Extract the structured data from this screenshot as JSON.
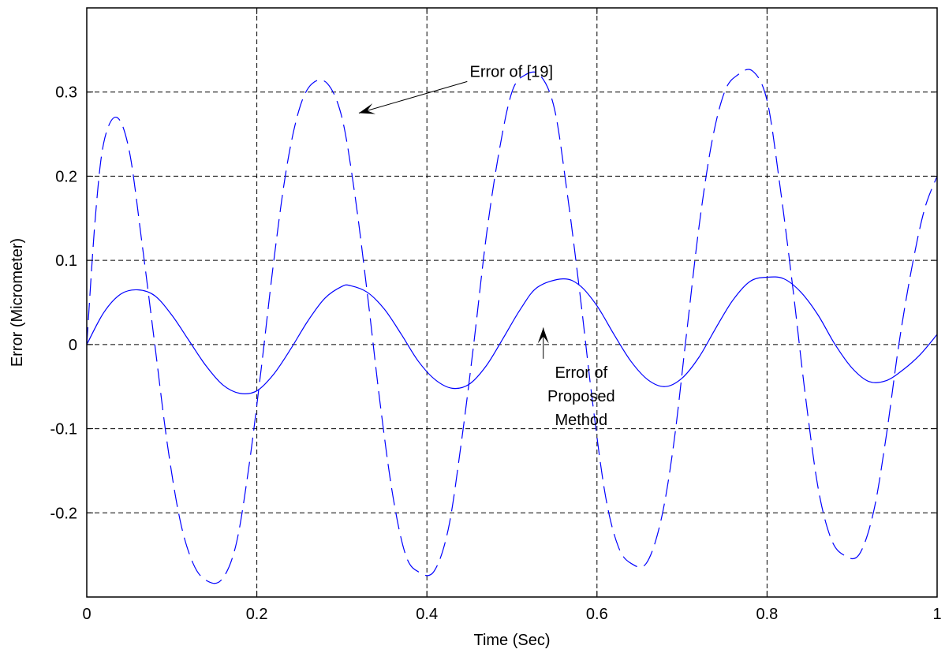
{
  "chart_data": {
    "type": "line",
    "title": "",
    "xlabel": "Time (Sec)",
    "ylabel": "Error (Micrometer)",
    "xlim": [
      0,
      1
    ],
    "ylim": [
      -0.3,
      0.4
    ],
    "xticks": [
      0,
      0.2,
      0.4,
      0.6,
      0.8,
      1
    ],
    "xtick_labels": [
      "0",
      "0.2",
      "0.4",
      "0.6",
      "0.8",
      "1"
    ],
    "yticks": [
      -0.2,
      -0.1,
      0,
      0.1,
      0.2,
      0.3
    ],
    "ytick_labels": [
      "-0.2",
      "-0.1",
      "0",
      "0.1",
      "0.2",
      "0.3"
    ],
    "grid": true,
    "line_color": "#0000ff",
    "series": [
      {
        "id": "ref19",
        "style": "dashed",
        "x": [
          0,
          0.01,
          0.02,
          0.035,
          0.05,
          0.065,
          0.08,
          0.095,
          0.11,
          0.125,
          0.14,
          0.158,
          0.175,
          0.19,
          0.205,
          0.22,
          0.235,
          0.25,
          0.265,
          0.283,
          0.3,
          0.315,
          0.33,
          0.345,
          0.36,
          0.375,
          0.39,
          0.408,
          0.425,
          0.44,
          0.455,
          0.47,
          0.485,
          0.5,
          0.515,
          0.533,
          0.55,
          0.565,
          0.58,
          0.595,
          0.61,
          0.625,
          0.64,
          0.658,
          0.675,
          0.69,
          0.705,
          0.72,
          0.735,
          0.75,
          0.765,
          0.783,
          0.8,
          0.815,
          0.83,
          0.845,
          0.86,
          0.875,
          0.89,
          0.908,
          0.925,
          0.94,
          0.955,
          0.97,
          0.985,
          1.0
        ],
        "y": [
          0,
          0.15,
          0.24,
          0.27,
          0.23,
          0.12,
          0.0,
          -0.12,
          -0.21,
          -0.26,
          -0.28,
          -0.28,
          -0.24,
          -0.15,
          -0.03,
          0.1,
          0.21,
          0.28,
          0.31,
          0.31,
          0.27,
          0.18,
          0.06,
          -0.07,
          -0.18,
          -0.25,
          -0.27,
          -0.27,
          -0.22,
          -0.12,
          0.0,
          0.13,
          0.23,
          0.3,
          0.32,
          0.32,
          0.28,
          0.18,
          0.06,
          -0.07,
          -0.18,
          -0.24,
          -0.26,
          -0.26,
          -0.21,
          -0.12,
          0.01,
          0.14,
          0.24,
          0.3,
          0.32,
          0.325,
          0.29,
          0.19,
          0.07,
          -0.06,
          -0.17,
          -0.23,
          -0.25,
          -0.25,
          -0.2,
          -0.11,
          0.0,
          0.09,
          0.16,
          0.2
        ]
      },
      {
        "id": "proposed",
        "style": "solid",
        "x": [
          0,
          0.02,
          0.04,
          0.06,
          0.08,
          0.1,
          0.12,
          0.14,
          0.16,
          0.18,
          0.2,
          0.22,
          0.24,
          0.26,
          0.28,
          0.3,
          0.31,
          0.33,
          0.35,
          0.37,
          0.39,
          0.41,
          0.43,
          0.45,
          0.47,
          0.49,
          0.51,
          0.53,
          0.56,
          0.58,
          0.6,
          0.62,
          0.64,
          0.66,
          0.68,
          0.7,
          0.72,
          0.74,
          0.76,
          0.78,
          0.8,
          0.82,
          0.84,
          0.86,
          0.88,
          0.9,
          0.92,
          0.94,
          0.96,
          0.98,
          1.0
        ],
        "y": [
          0,
          0.038,
          0.06,
          0.065,
          0.058,
          0.035,
          0.005,
          -0.025,
          -0.048,
          -0.058,
          -0.055,
          -0.035,
          -0.005,
          0.028,
          0.055,
          0.069,
          0.07,
          0.062,
          0.042,
          0.012,
          -0.02,
          -0.042,
          -0.052,
          -0.047,
          -0.025,
          0.008,
          0.042,
          0.068,
          0.078,
          0.07,
          0.046,
          0.012,
          -0.02,
          -0.042,
          -0.05,
          -0.04,
          -0.015,
          0.02,
          0.053,
          0.075,
          0.08,
          0.078,
          0.062,
          0.035,
          0.0,
          -0.028,
          -0.044,
          -0.043,
          -0.03,
          -0.012,
          0.012
        ]
      }
    ],
    "annotations": [
      {
        "id": "ann-ref19",
        "lines": [
          "Error of [19]"
        ],
        "x": 0.44,
        "y": 0.305,
        "arrow_to": [
          0.32,
          0.275
        ]
      },
      {
        "id": "ann-proposed",
        "lines": [
          "Error of",
          "Proposed",
          "Method"
        ],
        "x": 0.6,
        "y": -0.03,
        "arrow_to": [
          0.535,
          0.02
        ]
      }
    ]
  }
}
